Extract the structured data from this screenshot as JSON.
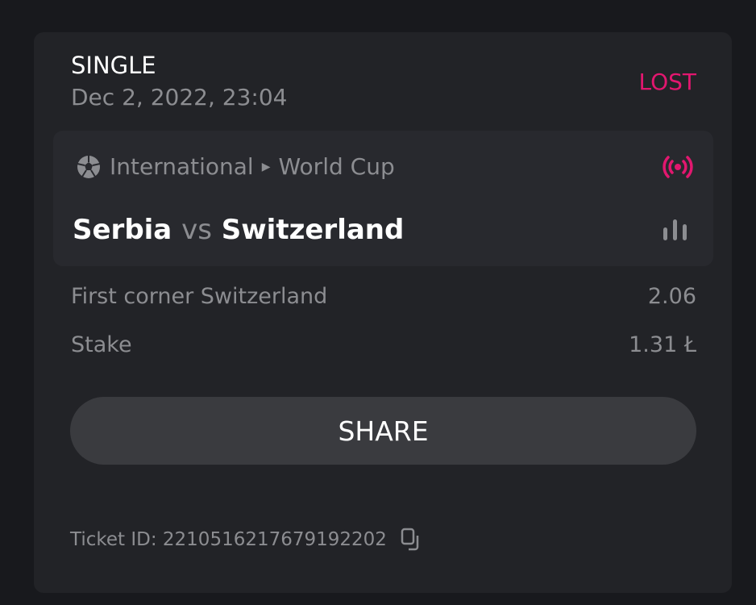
{
  "bet": {
    "type": "SINGLE",
    "date": "Dec 2, 2022, 23:04",
    "status": "LOST",
    "status_color": "#e2176f"
  },
  "event": {
    "sport_icon": "soccer-ball-icon",
    "category": "International",
    "league": "World Cup",
    "home": "Serbia",
    "vs": "vs",
    "away": "Switzerland",
    "live_icon": "live-broadcast-icon",
    "stats_icon": "bar-chart-icon"
  },
  "selection": {
    "label": "First corner Switzerland",
    "odds": "2.06"
  },
  "stake": {
    "label": "Stake",
    "value": "1.31 Ł"
  },
  "share_label": "SHARE",
  "ticket": {
    "label": "Ticket ID: 2210516217679192202",
    "copy_icon": "copy-icon"
  }
}
